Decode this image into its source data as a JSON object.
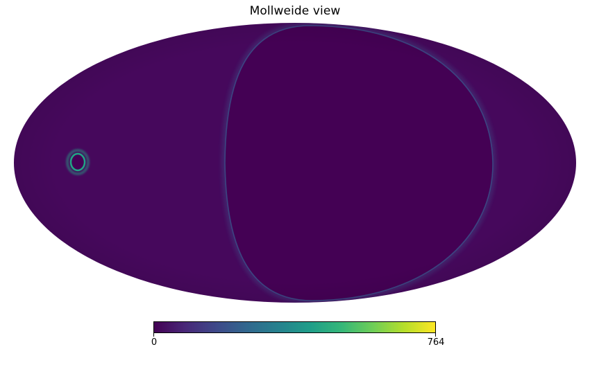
{
  "title": "Mollweide view",
  "projection": "mollweide",
  "colormap": {
    "name": "viridis",
    "stops": [
      "#440154",
      "#482878",
      "#3e4989",
      "#31688e",
      "#26828e",
      "#1f9e89",
      "#35b779",
      "#6ece58",
      "#b5de2b",
      "#fde725"
    ]
  },
  "colors": {
    "background_field": "#46085c",
    "void_region": "#440154",
    "boundary_glow": "#3b528b",
    "hotspot_ring": "#21a585",
    "hotspot_core": "#440154"
  },
  "colorbar": {
    "min_label": "0",
    "max_label": "764",
    "min": 0,
    "max": 764,
    "orientation": "horizontal"
  }
}
